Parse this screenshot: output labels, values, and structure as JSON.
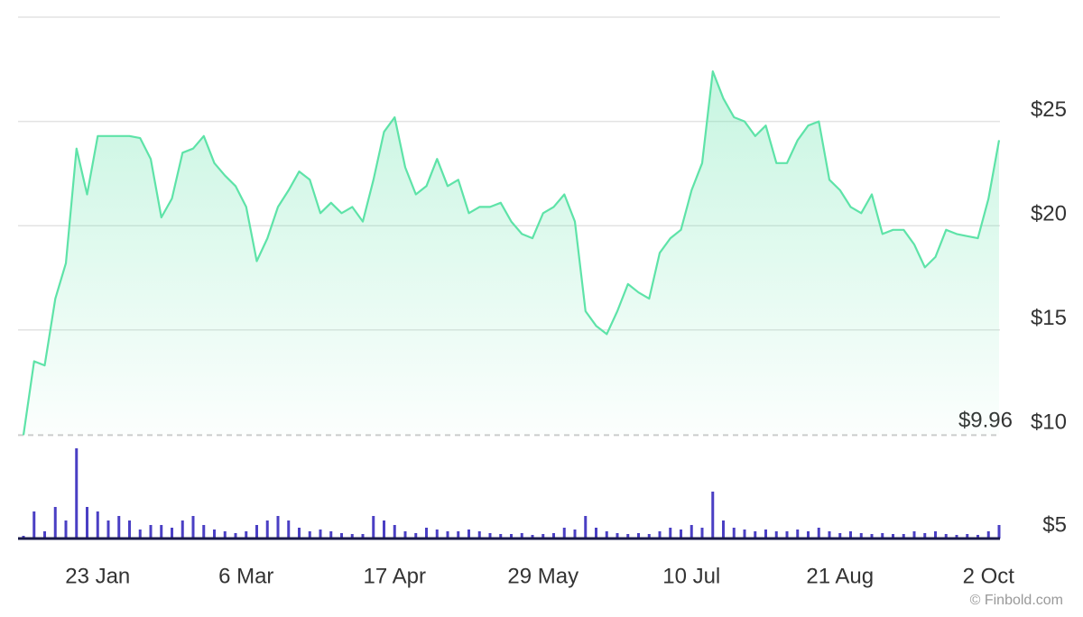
{
  "chart_data": {
    "type": "line",
    "x": [
      "2 Jan",
      "5 Jan",
      "8 Jan",
      "11 Jan",
      "14 Jan",
      "17 Jan",
      "20 Jan",
      "23 Jan",
      "26 Jan",
      "29 Jan",
      "1 Feb",
      "4 Feb",
      "7 Feb",
      "10 Feb",
      "13 Feb",
      "16 Feb",
      "19 Feb",
      "22 Feb",
      "25 Feb",
      "28 Feb",
      "3 Mar",
      "6 Mar",
      "9 Mar",
      "12 Mar",
      "15 Mar",
      "18 Mar",
      "21 Mar",
      "24 Mar",
      "27 Mar",
      "30 Mar",
      "2 Apr",
      "5 Apr",
      "8 Apr",
      "11 Apr",
      "14 Apr",
      "17 Apr",
      "20 Apr",
      "23 Apr",
      "26 Apr",
      "29 Apr",
      "2 May",
      "5 May",
      "8 May",
      "11 May",
      "14 May",
      "17 May",
      "20 May",
      "23 May",
      "26 May",
      "29 May",
      "1 Jun",
      "4 Jun",
      "7 Jun",
      "10 Jun",
      "13 Jun",
      "16 Jun",
      "19 Jun",
      "22 Jun",
      "25 Jun",
      "28 Jun",
      "1 Jul",
      "4 Jul",
      "7 Jul",
      "10 Jul",
      "13 Jul",
      "16 Jul",
      "19 Jul",
      "22 Jul",
      "25 Jul",
      "28 Jul",
      "31 Jul",
      "3 Aug",
      "6 Aug",
      "9 Aug",
      "12 Aug",
      "15 Aug",
      "18 Aug",
      "21 Aug",
      "24 Aug",
      "27 Aug",
      "30 Aug",
      "2 Sep",
      "5 Sep",
      "8 Sep",
      "11 Sep",
      "14 Sep",
      "17 Sep",
      "20 Sep",
      "23 Sep",
      "26 Sep",
      "29 Sep",
      "2 Oct",
      "5 Oct"
    ],
    "values": [
      9.96,
      13.5,
      13.3,
      16.5,
      18.2,
      23.7,
      21.5,
      24.3,
      24.3,
      24.3,
      24.3,
      24.2,
      23.2,
      20.4,
      21.3,
      23.5,
      23.7,
      24.3,
      23.0,
      22.4,
      21.9,
      20.9,
      18.3,
      19.4,
      20.9,
      21.7,
      22.6,
      22.2,
      20.6,
      21.1,
      20.6,
      20.9,
      20.2,
      22.2,
      24.5,
      25.2,
      22.8,
      21.5,
      21.9,
      23.2,
      21.9,
      22.2,
      20.6,
      20.9,
      20.9,
      21.1,
      20.2,
      19.6,
      19.4,
      20.6,
      20.9,
      21.5,
      20.2,
      15.9,
      15.2,
      14.8,
      15.9,
      17.2,
      16.8,
      16.5,
      18.7,
      19.4,
      19.8,
      21.7,
      23.0,
      27.4,
      26.1,
      25.2,
      25.0,
      24.3,
      24.8,
      23.0,
      23.0,
      24.1,
      24.8,
      25.0,
      22.2,
      21.7,
      20.9,
      20.6,
      21.5,
      19.6,
      19.8,
      19.8,
      19.1,
      18.0,
      18.5,
      19.8,
      19.6,
      19.5,
      19.4,
      21.3,
      24.1
    ],
    "color": "#5ee3a8",
    "volume": {
      "color": "#4a3fc4",
      "values": [
        3,
        30,
        8,
        35,
        20,
        100,
        35,
        30,
        20,
        25,
        20,
        10,
        15,
        15,
        12,
        20,
        25,
        15,
        10,
        8,
        6,
        8,
        15,
        20,
        25,
        20,
        12,
        8,
        10,
        8,
        6,
        5,
        5,
        25,
        20,
        15,
        8,
        6,
        12,
        10,
        8,
        8,
        10,
        8,
        6,
        5,
        5,
        6,
        4,
        5,
        6,
        12,
        10,
        25,
        12,
        8,
        6,
        5,
        6,
        5,
        8,
        12,
        10,
        15,
        12,
        52,
        20,
        12,
        10,
        8,
        10,
        8,
        8,
        10,
        8,
        12,
        8,
        6,
        8,
        6,
        5,
        6,
        5,
        5,
        8,
        6,
        8,
        5,
        4,
        5,
        4,
        8,
        15
      ]
    },
    "ylim": [
      5,
      30
    ],
    "yticks": [
      {
        "value": 5,
        "label": "$5"
      },
      {
        "value": 10,
        "label": "$10"
      },
      {
        "value": 15,
        "label": "$15"
      },
      {
        "value": 20,
        "label": "$20"
      },
      {
        "value": 25,
        "label": "$25"
      }
    ],
    "xticks": [
      "23 Jan",
      "6 Mar",
      "17 Apr",
      "29 May",
      "10 Jul",
      "21 Aug",
      "2 Oct"
    ],
    "reference_line": {
      "value": 9.96,
      "label": "$9.96"
    },
    "grid": true
  },
  "footer": {
    "credit": "© Finbold.com"
  }
}
